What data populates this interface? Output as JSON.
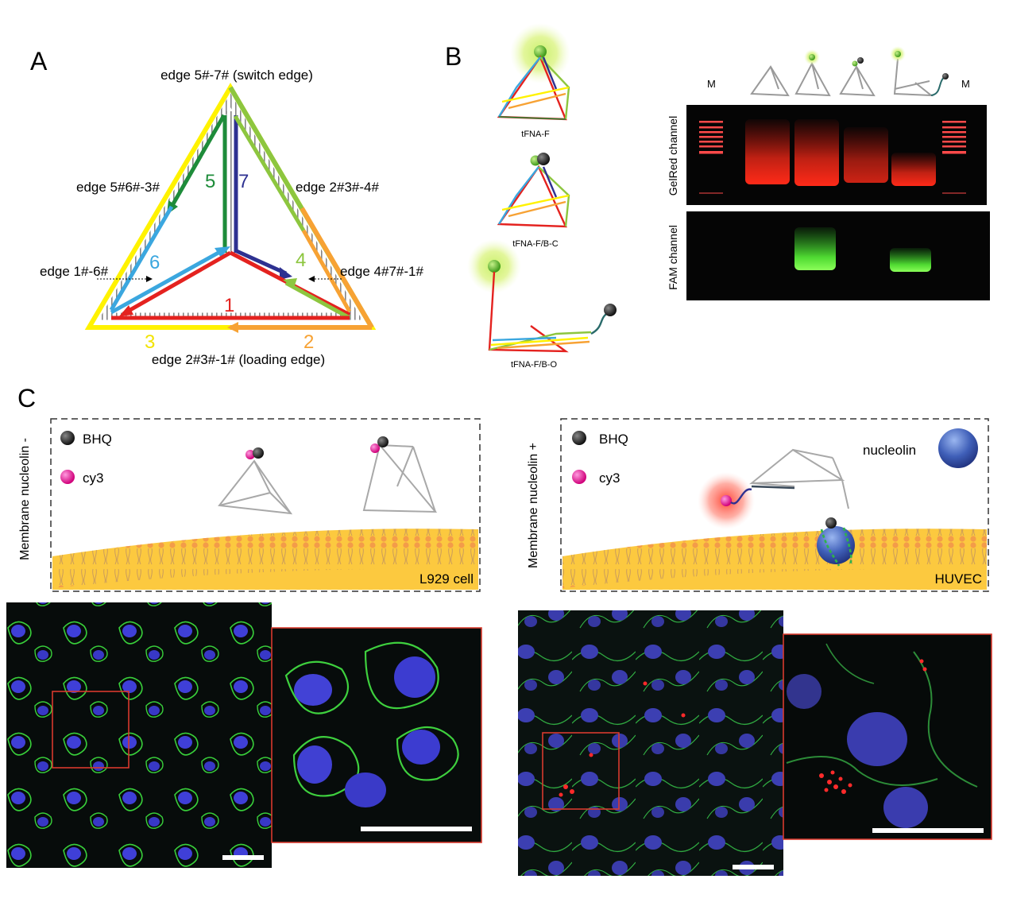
{
  "panel_labels": {
    "a": "A",
    "b": "B",
    "c": "C"
  },
  "panel_a": {
    "edges": {
      "top": "edge 5#-7# (switch edge)",
      "upper_left": "edge 5#6#-3#",
      "upper_right": "edge 2#3#-4#",
      "left": "edge 1#-6#",
      "right": "edge 4#7#-1#",
      "bottom": "edge 2#3#-1# (loading edge)"
    },
    "strand_numbers": {
      "s1": "1",
      "s2": "2",
      "s3": "3",
      "s4": "4",
      "s5": "5",
      "s6": "6",
      "s7": "7"
    }
  },
  "panel_b": {
    "structures": {
      "f": "tFNA-F",
      "fbc": "tFNA-F/B-C",
      "fbo": "tFNA-F/B-O"
    },
    "gel": {
      "marker_left": "M",
      "marker_right": "M",
      "channel_top": "GelRed channel",
      "channel_bottom": "FAM  channel"
    }
  },
  "panel_c": {
    "left": {
      "side_label": "Membrane nucleolin -",
      "legend_bhq": "BHQ",
      "legend_cy3": "cy3",
      "cell_label": "L929 cell"
    },
    "right": {
      "side_label": "Membrane nucleolin +",
      "legend_bhq": "BHQ",
      "legend_cy3": "cy3",
      "protein_label": "nucleolin",
      "cell_label": "HUVEC"
    }
  },
  "colors": {
    "strand_red": "#e4221f",
    "strand_yellow": "#fff200",
    "strand_orange": "#f7a234",
    "strand_lightgreen": "#8dc63f",
    "strand_darkgreen": "#1e8c3a",
    "strand_blue": "#3ba7df",
    "strand_navy": "#2e3191",
    "membrane_orange": "#f4a055",
    "cytoplasm": "#fcc93f"
  }
}
